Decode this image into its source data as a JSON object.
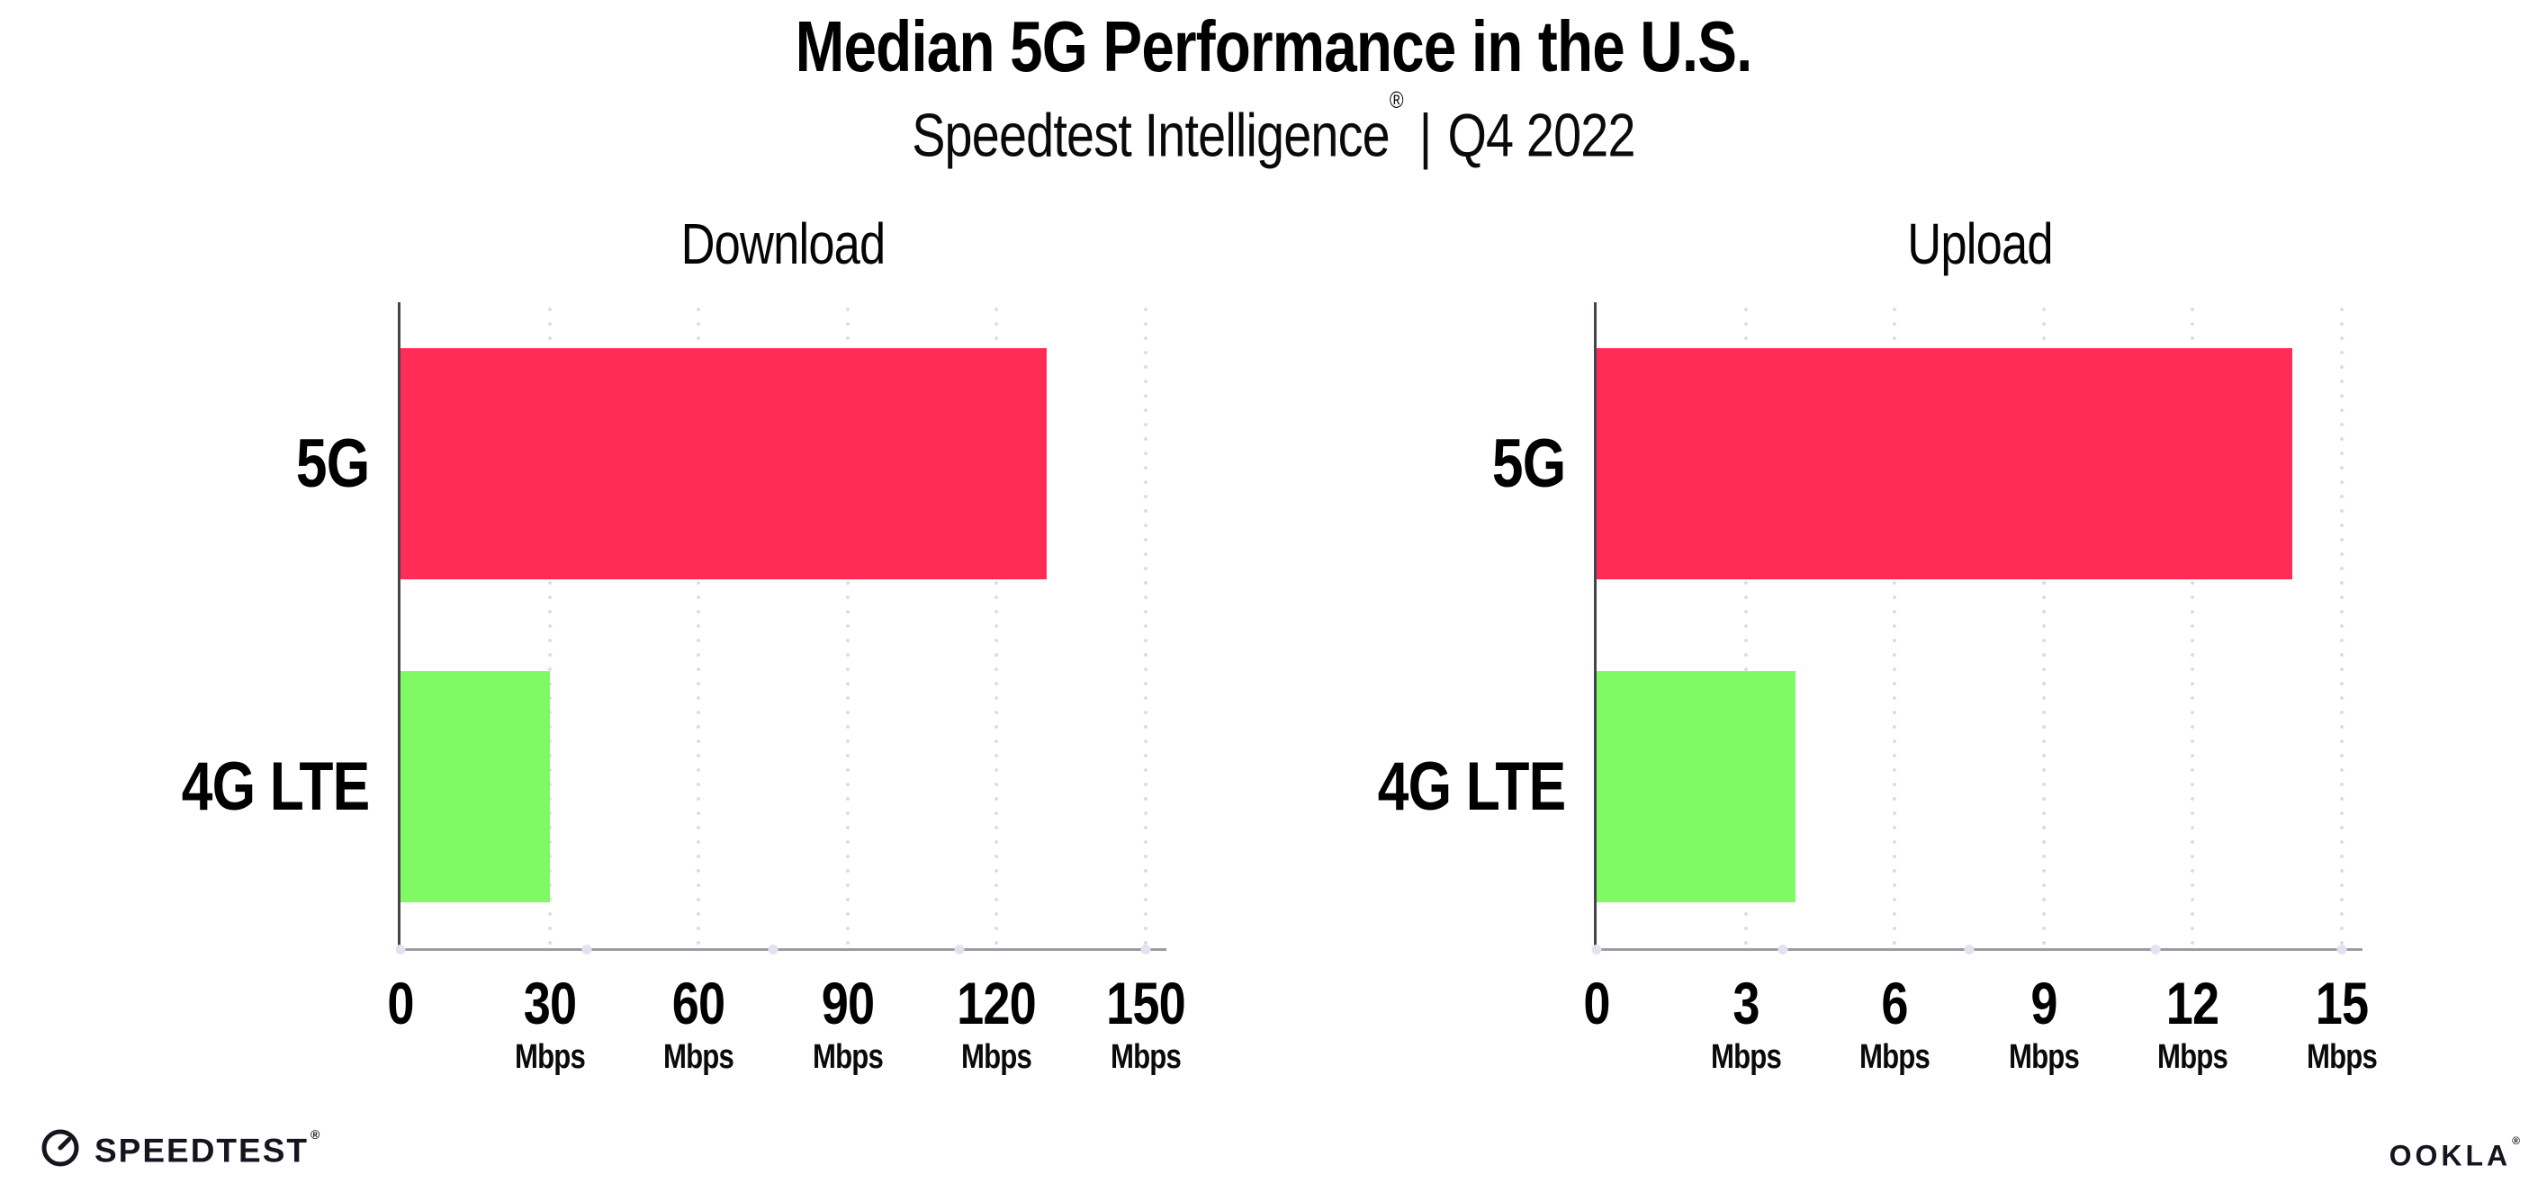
{
  "header": {
    "title": "Median 5G Performance in the U.S.",
    "subtitle": {
      "brand": "Speedtest Intelligence",
      "registered_mark": "®",
      "separator": "|",
      "period": "Q4 2022"
    }
  },
  "chart_data": [
    {
      "type": "bar",
      "orientation": "horizontal",
      "title": "Download",
      "categories": [
        "5G",
        "4G LTE"
      ],
      "values": [
        130,
        30
      ],
      "value_unit": "Mbps",
      "xlim": [
        0,
        150
      ],
      "xticks": [
        0,
        30,
        60,
        90,
        120,
        150
      ],
      "tick_unit_label": "Mbps",
      "bar_colors": [
        "#FF2D56",
        "#80FA64"
      ],
      "grid": "dotted-vertical-gridlines",
      "legend": "none"
    },
    {
      "type": "bar",
      "orientation": "horizontal",
      "title": "Upload",
      "categories": [
        "5G",
        "4G LTE"
      ],
      "values": [
        14,
        4
      ],
      "value_unit": "Mbps",
      "xlim": [
        0,
        15
      ],
      "xticks": [
        0,
        3,
        6,
        9,
        12,
        15
      ],
      "tick_unit_label": "Mbps",
      "bar_colors": [
        "#FF2D56",
        "#80FA64"
      ],
      "grid": "dotted-vertical-gridlines",
      "legend": "none"
    }
  ],
  "footer": {
    "speedtest_logo_text": "SPEEDTEST",
    "speedtest_registered_mark": "®",
    "ookla_logo_text": "OOKLA",
    "ookla_registered_mark": "®"
  },
  "palette": {
    "bar_5g": "#FF2D56",
    "bar_4g_lte": "#80FA64",
    "y_axis_line": "#45444E",
    "x_axis_line": "#9B9BA3",
    "gridline_dots": "#DCDDE8",
    "text": "#000000",
    "logo_text": "#15151F",
    "background": "#FFFFFF"
  }
}
